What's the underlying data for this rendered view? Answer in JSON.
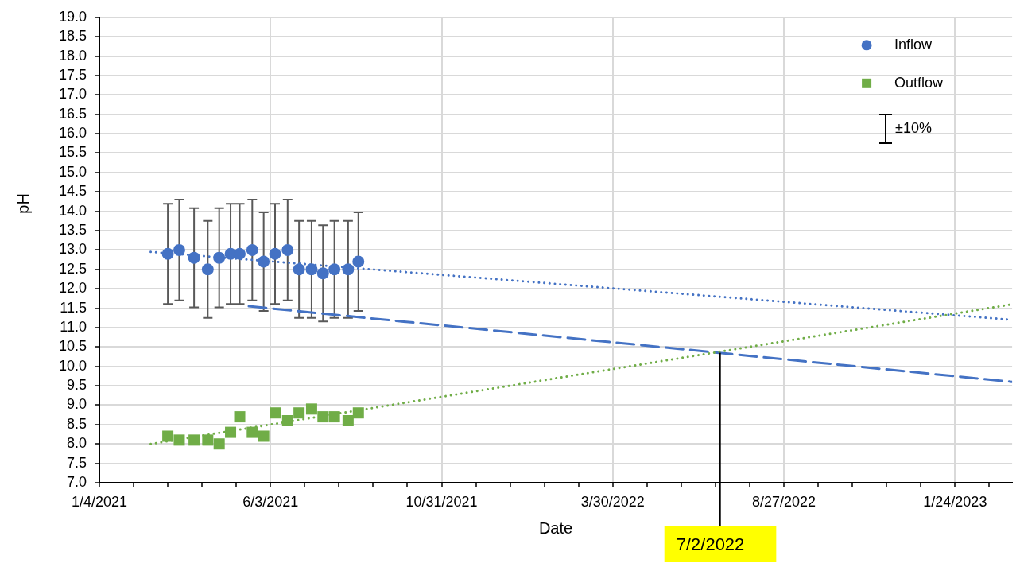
{
  "chart_data": {
    "type": "scatter",
    "xlabel": "Date",
    "ylabel": "pH",
    "xlim": [
      "2021-01-04",
      "2023-03-15"
    ],
    "xticks": [
      {
        "value": "2021-01-04",
        "label": "1/4/2021"
      },
      {
        "value": "2021-02-03",
        "label": null
      },
      {
        "value": "2021-03-05",
        "label": null
      },
      {
        "value": "2021-04-04",
        "label": null
      },
      {
        "value": "2021-05-04",
        "label": null
      },
      {
        "value": "2021-06-03",
        "label": "6/3/2021"
      },
      {
        "value": "2021-07-03",
        "label": null
      },
      {
        "value": "2021-08-02",
        "label": null
      },
      {
        "value": "2021-09-01",
        "label": null
      },
      {
        "value": "2021-10-01",
        "label": null
      },
      {
        "value": "2021-10-31",
        "label": "10/31/2021"
      },
      {
        "value": "2021-11-30",
        "label": null
      },
      {
        "value": "2021-12-30",
        "label": null
      },
      {
        "value": "2022-01-29",
        "label": null
      },
      {
        "value": "2022-02-28",
        "label": null
      },
      {
        "value": "2022-03-30",
        "label": "3/30/2022"
      },
      {
        "value": "2022-04-29",
        "label": null
      },
      {
        "value": "2022-05-29",
        "label": null
      },
      {
        "value": "2022-06-28",
        "label": null
      },
      {
        "value": "2022-07-28",
        "label": null
      },
      {
        "value": "2022-08-27",
        "label": "8/27/2022"
      },
      {
        "value": "2022-09-26",
        "label": null
      },
      {
        "value": "2022-10-26",
        "label": null
      },
      {
        "value": "2022-11-25",
        "label": null
      },
      {
        "value": "2022-12-25",
        "label": null
      },
      {
        "value": "2023-01-24",
        "label": "1/24/2023"
      },
      {
        "value": "2023-02-23",
        "label": null
      }
    ],
    "ylim": [
      7,
      19
    ],
    "yticks": [
      {
        "value": 7,
        "label": "7.0"
      },
      {
        "value": 7.5,
        "label": "7.5"
      },
      {
        "value": 8,
        "label": "8.0"
      },
      {
        "value": 8.5,
        "label": "8.5"
      },
      {
        "value": 9,
        "label": "9.0"
      },
      {
        "value": 9.5,
        "label": "9.5"
      },
      {
        "value": 10,
        "label": "10.0"
      },
      {
        "value": 10.5,
        "label": "10.5"
      },
      {
        "value": 11,
        "label": "11.0"
      },
      {
        "value": 11.5,
        "label": "11.5"
      },
      {
        "value": 12,
        "label": "12.0"
      },
      {
        "value": 12.5,
        "label": "12.5"
      },
      {
        "value": 13,
        "label": "13.0"
      },
      {
        "value": 13.5,
        "label": "13.5"
      },
      {
        "value": 14,
        "label": "14.0"
      },
      {
        "value": 14.5,
        "label": "14.5"
      },
      {
        "value": 15,
        "label": "15.0"
      },
      {
        "value": 15.5,
        "label": "15.5"
      },
      {
        "value": 16,
        "label": "16.0"
      },
      {
        "value": 16.5,
        "label": "16.5"
      },
      {
        "value": 17,
        "label": "17.0"
      },
      {
        "value": 17.5,
        "label": "17.5"
      },
      {
        "value": 18,
        "label": "18.0"
      },
      {
        "value": 18.5,
        "label": "18.5"
      },
      {
        "value": 19,
        "label": "19.0"
      }
    ],
    "grid": true,
    "legend": "top right",
    "x": [
      "2021-03-05",
      "2021-03-15",
      "2021-03-28",
      "2021-04-09",
      "2021-04-19",
      "2021-04-29",
      "2021-05-07",
      "2021-05-18",
      "2021-05-28",
      "2021-06-07",
      "2021-06-18",
      "2021-06-28",
      "2021-07-09",
      "2021-07-19",
      "2021-07-29",
      "2021-08-10",
      "2021-08-19"
    ],
    "series": [
      {
        "name": "Inflow",
        "marker": "circle",
        "color": "#4472c4",
        "values": [
          12.9,
          13.0,
          12.8,
          12.5,
          12.8,
          12.9,
          12.9,
          13.0,
          12.7,
          12.9,
          13.0,
          12.5,
          12.5,
          12.4,
          12.5,
          12.5,
          12.7
        ],
        "errors": [
          1.29,
          1.3,
          1.28,
          1.25,
          1.28,
          1.29,
          1.29,
          1.3,
          1.27,
          1.29,
          1.3,
          1.25,
          1.25,
          1.24,
          1.25,
          1.25,
          1.27
        ]
      },
      {
        "name": "Outflow",
        "marker": "square",
        "color": "#70ad47",
        "values": [
          8.2,
          8.1,
          8.1,
          8.1,
          8.0,
          8.3,
          8.7,
          8.3,
          8.2,
          8.8,
          8.6,
          8.8,
          8.9,
          8.7,
          8.7,
          8.6,
          8.8
        ]
      },
      {
        "type": "line",
        "marker": "none",
        "line_style": "dotted",
        "color": "#4472c4",
        "x": [
          "2021-02-18",
          "2023-03-15"
        ],
        "values": [
          12.95,
          11.2
        ]
      },
      {
        "type": "line",
        "marker": "none",
        "line_style": "dotted",
        "color": "#70ad47",
        "x": [
          "2021-02-18",
          "2023-03-15"
        ],
        "values": [
          8.0,
          11.6
        ]
      },
      {
        "type": "line",
        "marker": "none",
        "line_style": "dashed",
        "color": "#4472c4",
        "x": [
          "2021-05-15",
          "2023-03-15"
        ],
        "values": [
          11.55,
          9.6
        ]
      }
    ],
    "annotations": [
      "±10%",
      {
        "text": "7/2/2022",
        "x": "2022-07-02",
        "y": 10.35
      }
    ]
  }
}
